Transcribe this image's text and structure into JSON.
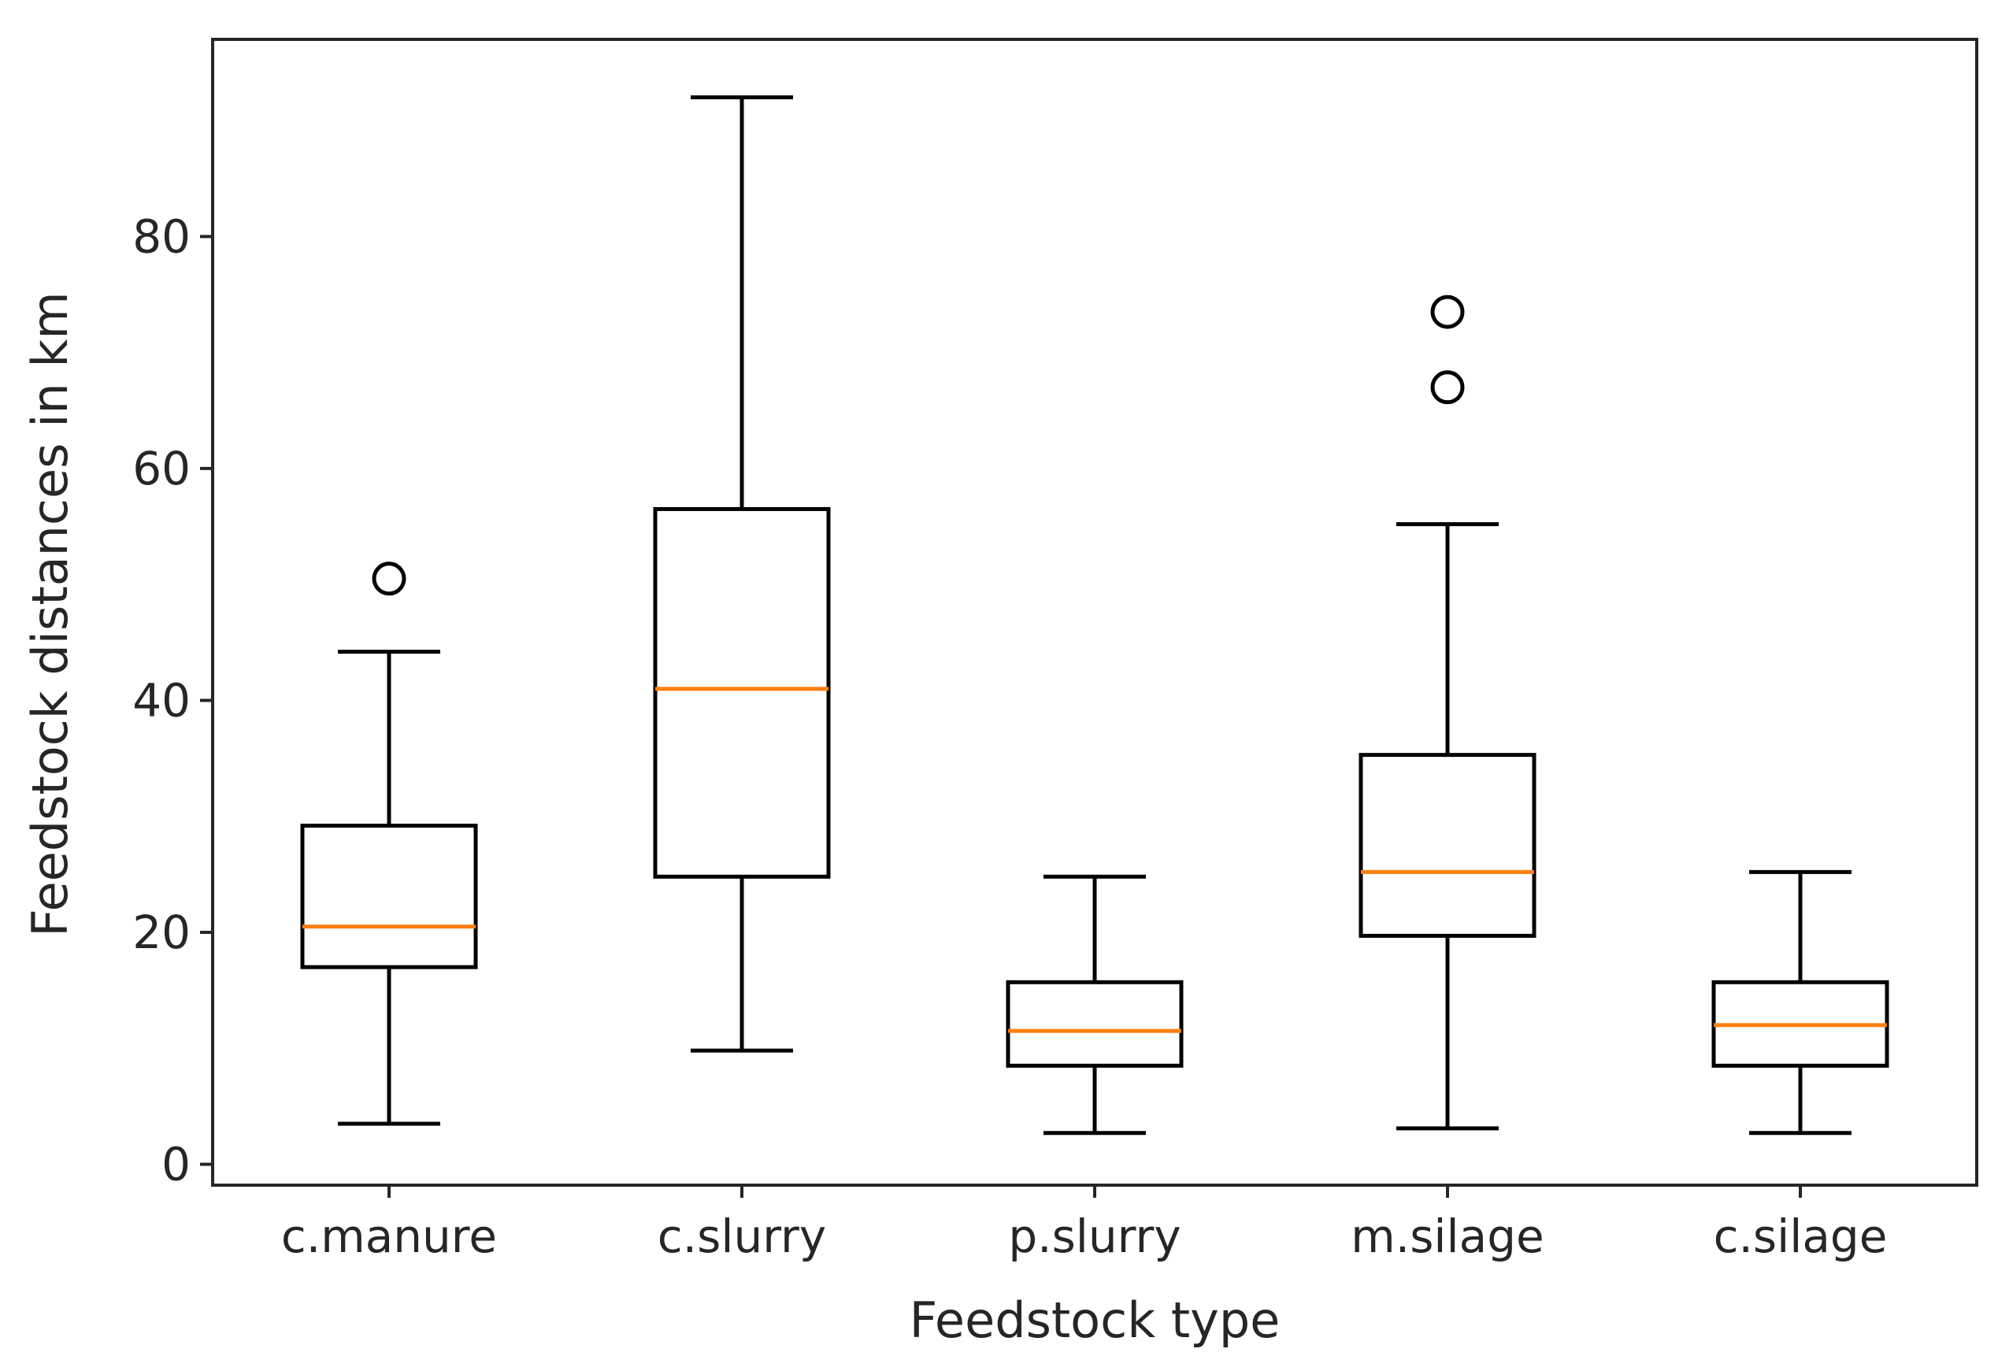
{
  "chart_data": {
    "type": "boxplot",
    "title": "",
    "xlabel": "Feedstock type",
    "ylabel": "Feedstock distances in km",
    "ylim": [
      -1.8,
      97
    ],
    "yticks": [
      0,
      20,
      40,
      60,
      80
    ],
    "ytick_labels": [
      "0",
      "20",
      "40",
      "60",
      "80"
    ],
    "grid": false,
    "categories": [
      "c.manure",
      "c.slurry",
      "p.slurry",
      "m.silage",
      "c.silage"
    ],
    "boxes": [
      {
        "name": "c.manure",
        "whisker_low": 3.5,
        "q1": 17.0,
        "median": 20.5,
        "q3": 29.2,
        "whisker_high": 44.2,
        "outliers": [
          50.5
        ]
      },
      {
        "name": "c.slurry",
        "whisker_low": 9.8,
        "q1": 24.8,
        "median": 41.0,
        "q3": 56.5,
        "whisker_high": 92.0,
        "outliers": []
      },
      {
        "name": "p.slurry",
        "whisker_low": 2.7,
        "q1": 8.5,
        "median": 11.5,
        "q3": 15.7,
        "whisker_high": 24.8,
        "outliers": []
      },
      {
        "name": "m.silage",
        "whisker_low": 3.1,
        "q1": 19.7,
        "median": 25.2,
        "q3": 35.3,
        "whisker_high": 55.2,
        "outliers": [
          67.0,
          73.5
        ]
      },
      {
        "name": "c.silage",
        "whisker_low": 2.7,
        "q1": 8.5,
        "median": 12.0,
        "q3": 15.7,
        "whisker_high": 25.2,
        "outliers": []
      }
    ],
    "colors": {
      "box": "#000000",
      "median": "#ff7f0e",
      "axes": "#262626",
      "text": "#262626"
    }
  }
}
